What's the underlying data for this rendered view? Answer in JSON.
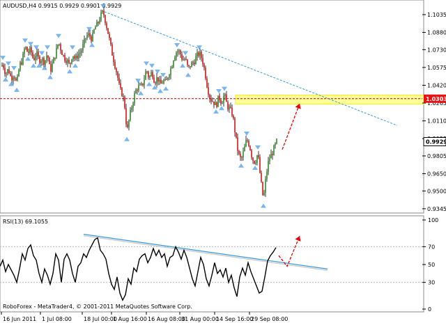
{
  "chart_data": [
    {
      "type": "candlestick",
      "header": "AUDUSD,H4  0.9915 0.9929 0.9901 0.9929",
      "ylim": [
        0.932,
        1.115
      ],
      "y_ticks": [
        "1.1035",
        "1.0880",
        "1.0730",
        "1.0575",
        "1.0420",
        "1.0265",
        "1.0110",
        "0.9955",
        "0.9805",
        "0.9650",
        "0.9500",
        "0.9345"
      ],
      "y_tick_values": [
        1.1035,
        1.088,
        1.073,
        1.0575,
        1.042,
        1.0265,
        1.011,
        0.9955,
        0.9805,
        0.965,
        0.95,
        0.9345
      ],
      "x_ticks": [
        "16 Jun 2011",
        "1 Jul 08:00",
        "18 Jul 00:00",
        "1 Aug 16:00",
        "16 Aug 08:00",
        "31 Aug 00:00",
        "14 Sep 16:00",
        "29 Sep 08:00"
      ],
      "current_price_label": "0.9929",
      "current_price": 0.9929,
      "level_label": "1.0303",
      "level_price": 1.0303,
      "close_path": [
        [
          0,
          1.056
        ],
        [
          4,
          1.061
        ],
        [
          8,
          1.052
        ],
        [
          12,
          1.056
        ],
        [
          16,
          1.048
        ],
        [
          20,
          1.052
        ],
        [
          24,
          1.043
        ],
        [
          28,
          1.059
        ],
        [
          32,
          1.064
        ],
        [
          36,
          1.076
        ],
        [
          40,
          1.07
        ],
        [
          44,
          1.073
        ],
        [
          48,
          1.064
        ],
        [
          52,
          1.07
        ],
        [
          56,
          1.064
        ],
        [
          60,
          1.065
        ],
        [
          64,
          1.062
        ],
        [
          68,
          1.07
        ],
        [
          72,
          1.054
        ],
        [
          76,
          1.062
        ],
        [
          80,
          1.07
        ],
        [
          84,
          1.08
        ],
        [
          88,
          1.072
        ],
        [
          92,
          1.066
        ],
        [
          96,
          1.064
        ],
        [
          100,
          1.059
        ],
        [
          104,
          1.07
        ],
        [
          108,
          1.064
        ],
        [
          112,
          1.069
        ],
        [
          116,
          1.071
        ],
        [
          120,
          1.078
        ],
        [
          124,
          1.085
        ],
        [
          128,
          1.086
        ],
        [
          132,
          1.082
        ],
        [
          136,
          1.092
        ],
        [
          140,
          1.095
        ],
        [
          144,
          1.102
        ],
        [
          148,
          1.106
        ],
        [
          152,
          1.096
        ],
        [
          156,
          1.085
        ],
        [
          160,
          1.072
        ],
        [
          164,
          1.062
        ],
        [
          168,
          1.052
        ],
        [
          172,
          1.038
        ],
        [
          176,
          1.034
        ],
        [
          180,
          1.02
        ],
        [
          182,
          1.0
        ],
        [
          186,
          1.015
        ],
        [
          190,
          1.026
        ],
        [
          194,
          1.036
        ],
        [
          198,
          1.041
        ],
        [
          202,
          1.04
        ],
        [
          206,
          1.045
        ],
        [
          210,
          1.056
        ],
        [
          214,
          1.048
        ],
        [
          218,
          1.054
        ],
        [
          222,
          1.045
        ],
        [
          226,
          1.049
        ],
        [
          230,
          1.042
        ],
        [
          234,
          1.046
        ],
        [
          238,
          1.044
        ],
        [
          242,
          1.052
        ],
        [
          246,
          1.058
        ],
        [
          250,
          1.068
        ],
        [
          254,
          1.072
        ],
        [
          258,
          1.071
        ],
        [
          262,
          1.064
        ],
        [
          266,
          1.065
        ],
        [
          270,
          1.056
        ],
        [
          274,
          1.06
        ],
        [
          278,
          1.062
        ],
        [
          282,
          1.067
        ],
        [
          286,
          1.07
        ],
        [
          290,
          1.065
        ],
        [
          294,
          1.054
        ],
        [
          298,
          1.039
        ],
        [
          302,
          1.03
        ],
        [
          306,
          1.028
        ],
        [
          310,
          1.024
        ],
        [
          314,
          1.032
        ],
        [
          318,
          1.027
        ],
        [
          322,
          1.034
        ],
        [
          326,
          1.024
        ],
        [
          330,
          1.021
        ],
        [
          334,
          1.016
        ],
        [
          338,
          0.998
        ],
        [
          342,
          0.982
        ],
        [
          346,
          0.977
        ],
        [
          350,
          0.985
        ],
        [
          354,
          0.995
        ],
        [
          358,
          0.99
        ],
        [
          362,
          0.978
        ],
        [
          366,
          0.975
        ],
        [
          370,
          0.983
        ],
        [
          374,
          0.96
        ],
        [
          378,
          0.942
        ],
        [
          382,
          0.964
        ],
        [
          386,
          0.978
        ],
        [
          390,
          0.982
        ],
        [
          394,
          0.988
        ],
        [
          397,
          0.9929
        ]
      ],
      "highlight_box": {
        "price_top": 1.0335,
        "price_bottom": 1.0255
      },
      "trend_line_upper": [
        [
          150,
          1.106
        ],
        [
          570,
          1.007
        ]
      ],
      "forecast_arrow": [
        [
          405,
          0.986
        ],
        [
          430,
          1.026
        ]
      ]
    },
    {
      "type": "line",
      "header": "RSI(13) 69.1055",
      "ylim": [
        0,
        100
      ],
      "y_ticks": [
        "100",
        "70",
        "50",
        "30",
        "0"
      ],
      "y_tick_values": [
        100,
        70,
        50,
        30,
        0
      ],
      "levels": [
        70,
        30
      ],
      "series": [
        {
          "values": [
            [
              0,
              48
            ],
            [
              4,
              55
            ],
            [
              8,
              42
            ],
            [
              12,
              50
            ],
            [
              16,
              44
            ],
            [
              20,
              38
            ],
            [
              24,
              30
            ],
            [
              28,
              45
            ],
            [
              32,
              62
            ],
            [
              36,
              55
            ],
            [
              40,
              68
            ],
            [
              44,
              72
            ],
            [
              48,
              60
            ],
            [
              52,
              55
            ],
            [
              56,
              40
            ],
            [
              60,
              30
            ],
            [
              64,
              45
            ],
            [
              68,
              38
            ],
            [
              72,
              28
            ],
            [
              76,
              40
            ],
            [
              80,
              62
            ],
            [
              84,
              55
            ],
            [
              88,
              30
            ],
            [
              92,
              56
            ],
            [
              96,
              62
            ],
            [
              100,
              55
            ],
            [
              104,
              40
            ],
            [
              108,
              30
            ],
            [
              112,
              48
            ],
            [
              116,
              52
            ],
            [
              120,
              62
            ],
            [
              124,
              58
            ],
            [
              128,
              66
            ],
            [
              132,
              72
            ],
            [
              136,
              78
            ],
            [
              140,
              80
            ],
            [
              144,
              66
            ],
            [
              148,
              62
            ],
            [
              152,
              56
            ],
            [
              156,
              40
            ],
            [
              160,
              28
            ],
            [
              164,
              22
            ],
            [
              168,
              36
            ],
            [
              172,
              18
            ],
            [
              176,
              10
            ],
            [
              180,
              16
            ],
            [
              184,
              34
            ],
            [
              188,
              28
            ],
            [
              192,
              46
            ],
            [
              196,
              42
            ],
            [
              200,
              56
            ],
            [
              204,
              60
            ],
            [
              208,
              62
            ],
            [
              212,
              52
            ],
            [
              216,
              58
            ],
            [
              220,
              68
            ],
            [
              224,
              60
            ],
            [
              228,
              66
            ],
            [
              232,
              58
            ],
            [
              236,
              62
            ],
            [
              240,
              48
            ],
            [
              244,
              58
            ],
            [
              248,
              60
            ],
            [
              252,
              70
            ],
            [
              256,
              64
            ],
            [
              260,
              56
            ],
            [
              264,
              66
            ],
            [
              268,
              58
            ],
            [
              272,
              46
            ],
            [
              276,
              34
            ],
            [
              280,
              26
            ],
            [
              284,
              42
            ],
            [
              288,
              58
            ],
            [
              292,
              50
            ],
            [
              296,
              34
            ],
            [
              300,
              26
            ],
            [
              304,
              38
            ],
            [
              308,
              52
            ],
            [
              312,
              40
            ],
            [
              316,
              44
            ],
            [
              320,
              36
            ],
            [
              324,
              46
            ],
            [
              328,
              30
            ],
            [
              332,
              38
            ],
            [
              336,
              24
            ],
            [
              340,
              14
            ],
            [
              344,
              36
            ],
            [
              348,
              46
            ],
            [
              352,
              38
            ],
            [
              356,
              52
            ],
            [
              360,
              42
            ],
            [
              364,
              34
            ],
            [
              368,
              26
            ],
            [
              372,
              18
            ],
            [
              376,
              20
            ],
            [
              380,
              36
            ],
            [
              384,
              54
            ],
            [
              388,
              60
            ],
            [
              392,
              64
            ],
            [
              396,
              69.1
            ]
          ]
        }
      ],
      "trend_line": [
        [
          120,
          84
        ],
        [
          470,
          45
        ]
      ],
      "forecast_arrow": [
        [
          400,
          60
        ],
        [
          430,
          82
        ]
      ]
    }
  ],
  "colors": {
    "bull": "#2e8b22",
    "bear": "#dd1111",
    "wick": "#000000",
    "trendline": "#3399dd",
    "forecast": "#ee0000",
    "fractal": "#6aaef0",
    "highlight": "#ffff99",
    "highlight_edge": "#f0f020",
    "level_line": "#cc0000",
    "current_tag_bg": "#ffffff",
    "level_tag_bg": "#ee1111",
    "grid": "#dddddd"
  },
  "footer": "RoboForex - MetaTrader4, © 2001-2011 MetaQuotes Software Corp."
}
